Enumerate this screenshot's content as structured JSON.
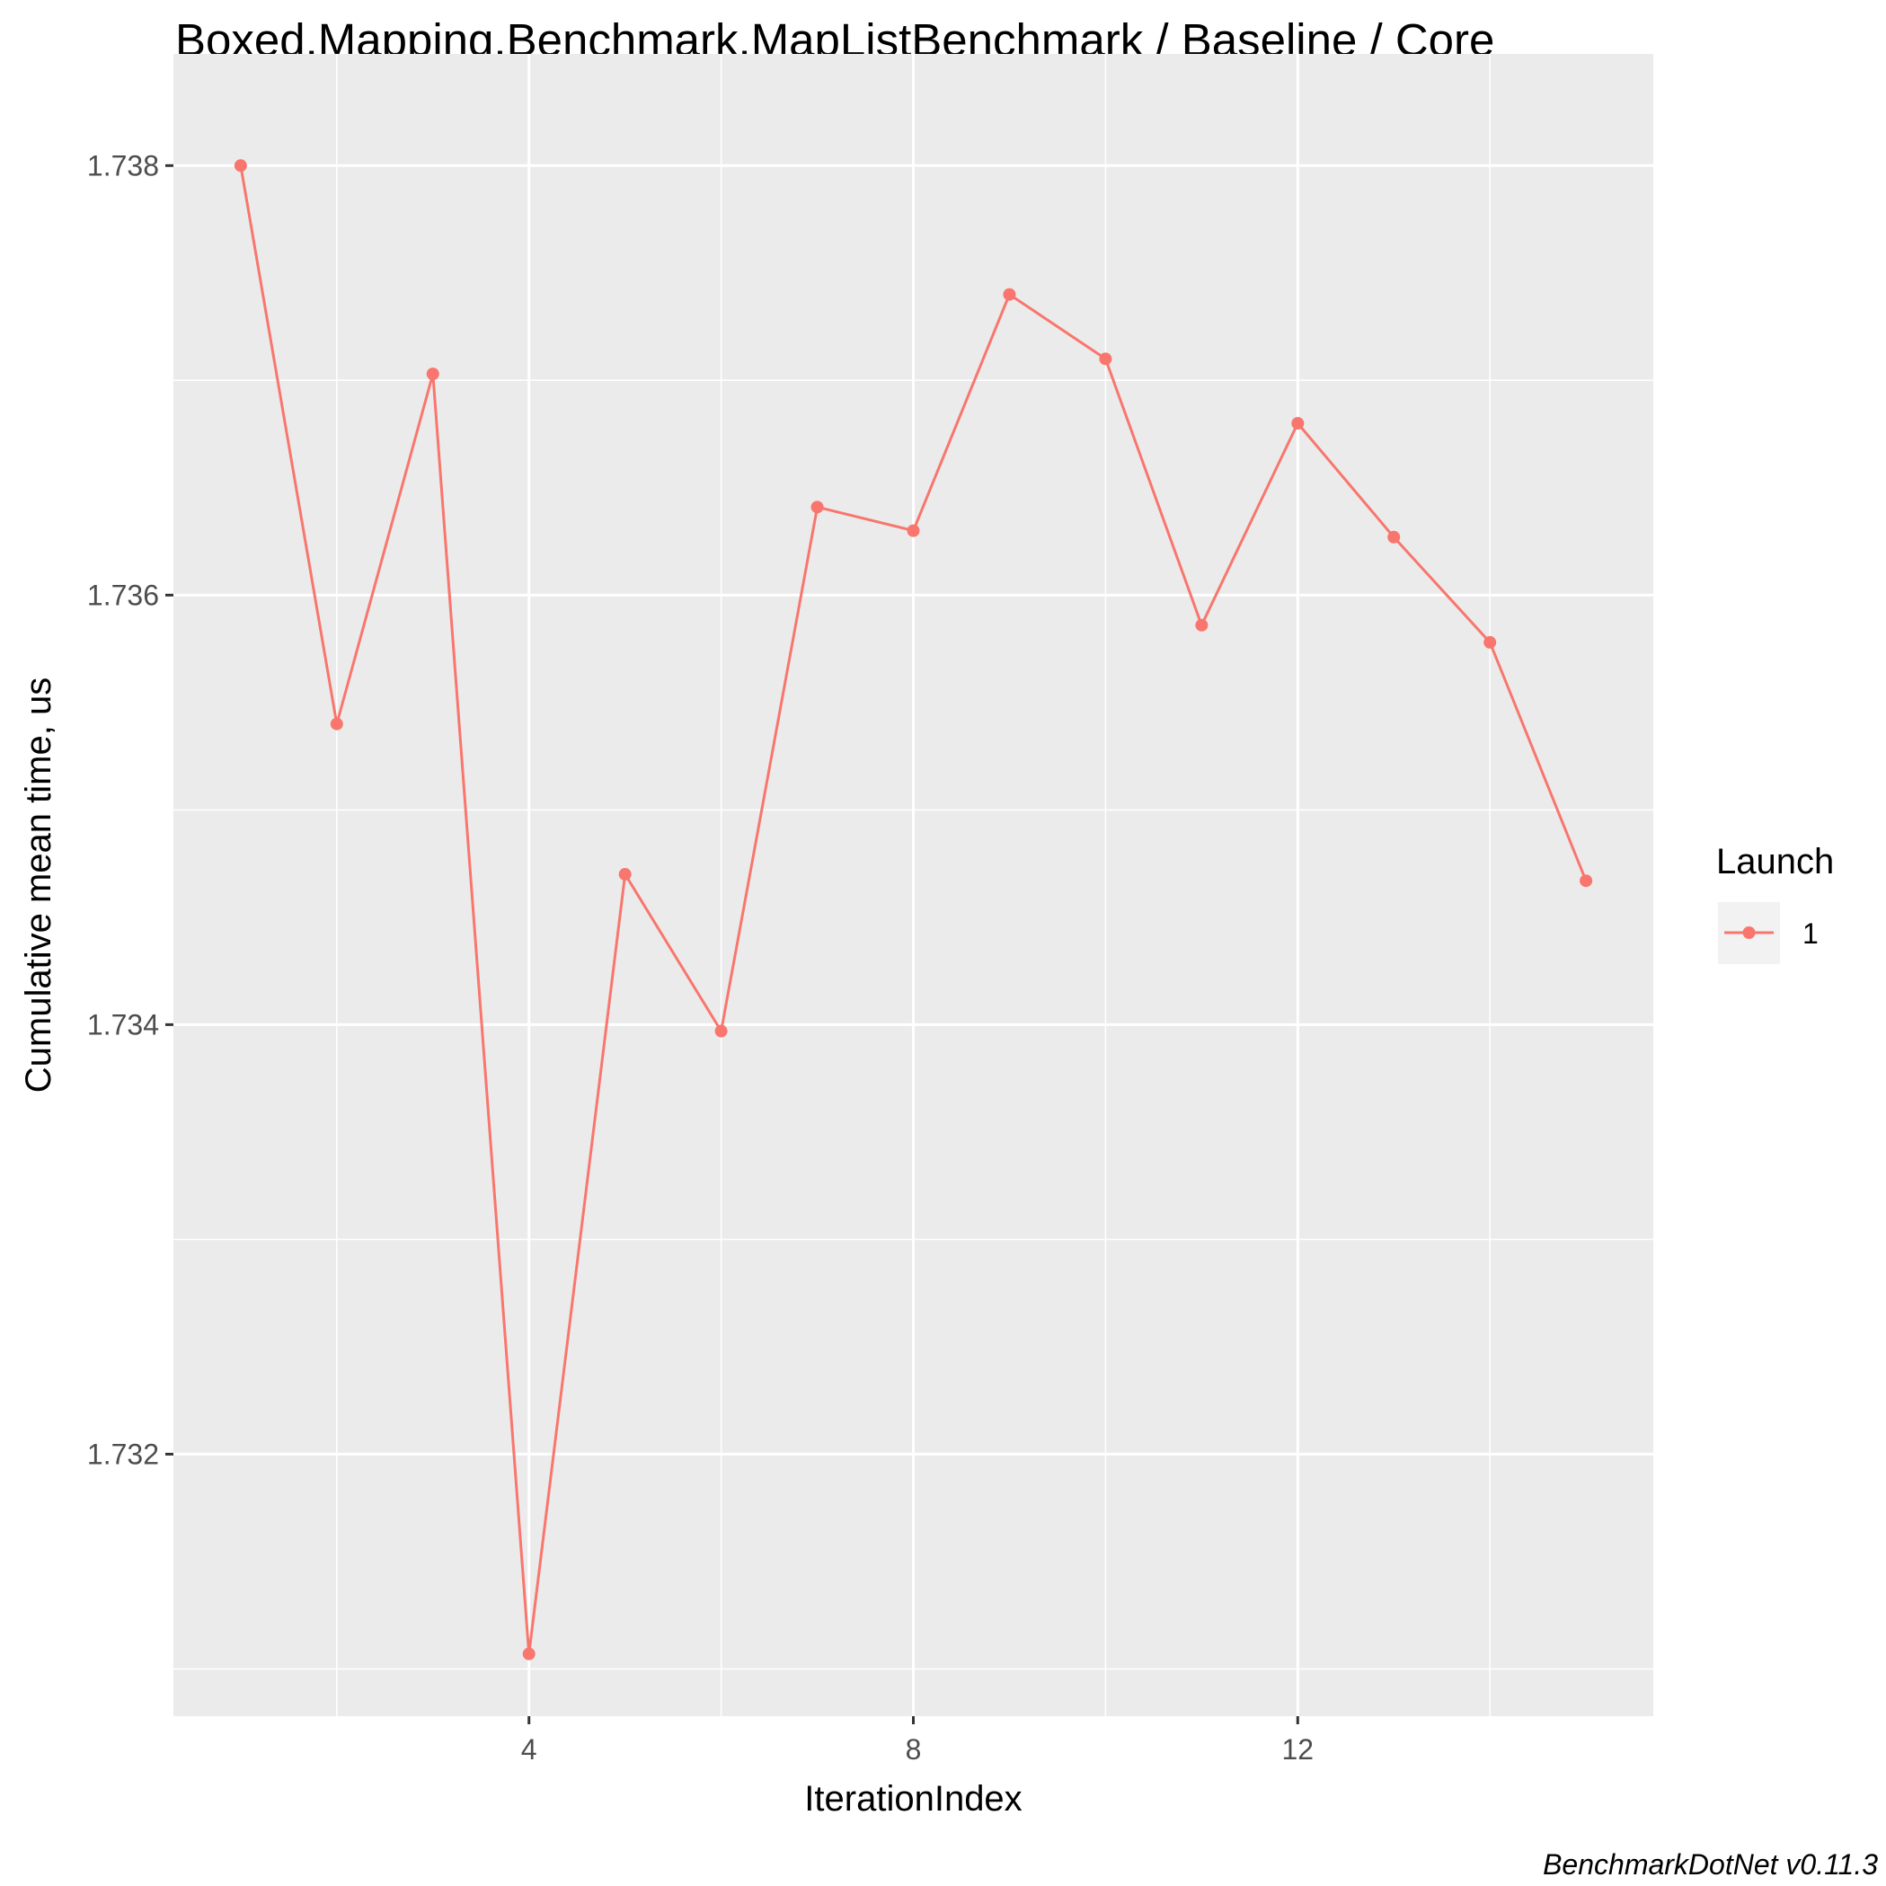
{
  "chart_data": {
    "type": "line",
    "title": "Boxed.Mapping.Benchmark.MapListBenchmark / Baseline / Core",
    "xlabel": "IterationIndex",
    "ylabel": "Cumulative mean time, us",
    "caption": "BenchmarkDotNet v0.11.3",
    "xlim": [
      0.3,
      15.7
    ],
    "ylim": [
      1.73078,
      1.73852
    ],
    "x_ticks": [
      4,
      8,
      12
    ],
    "y_ticks": [
      1.732,
      1.734,
      1.736,
      1.738
    ],
    "y_tick_labels": [
      "1.732",
      "1.734",
      "1.736",
      "1.738"
    ],
    "x_tick_labels": [
      "4",
      "8",
      "12"
    ],
    "grid": true,
    "legend": {
      "title": "Launch",
      "position": "right"
    },
    "series": [
      {
        "name": "1",
        "color": "#F8766D",
        "x": [
          1,
          2,
          3,
          4,
          5,
          6,
          7,
          8,
          9,
          10,
          11,
          12,
          13,
          14,
          15
        ],
        "y": [
          1.738,
          1.7354,
          1.73703,
          1.73107,
          1.7347,
          1.73397,
          1.73641,
          1.7363,
          1.7374,
          1.7371,
          1.73586,
          1.7368,
          1.73627,
          1.73578,
          1.73467
        ]
      }
    ]
  }
}
